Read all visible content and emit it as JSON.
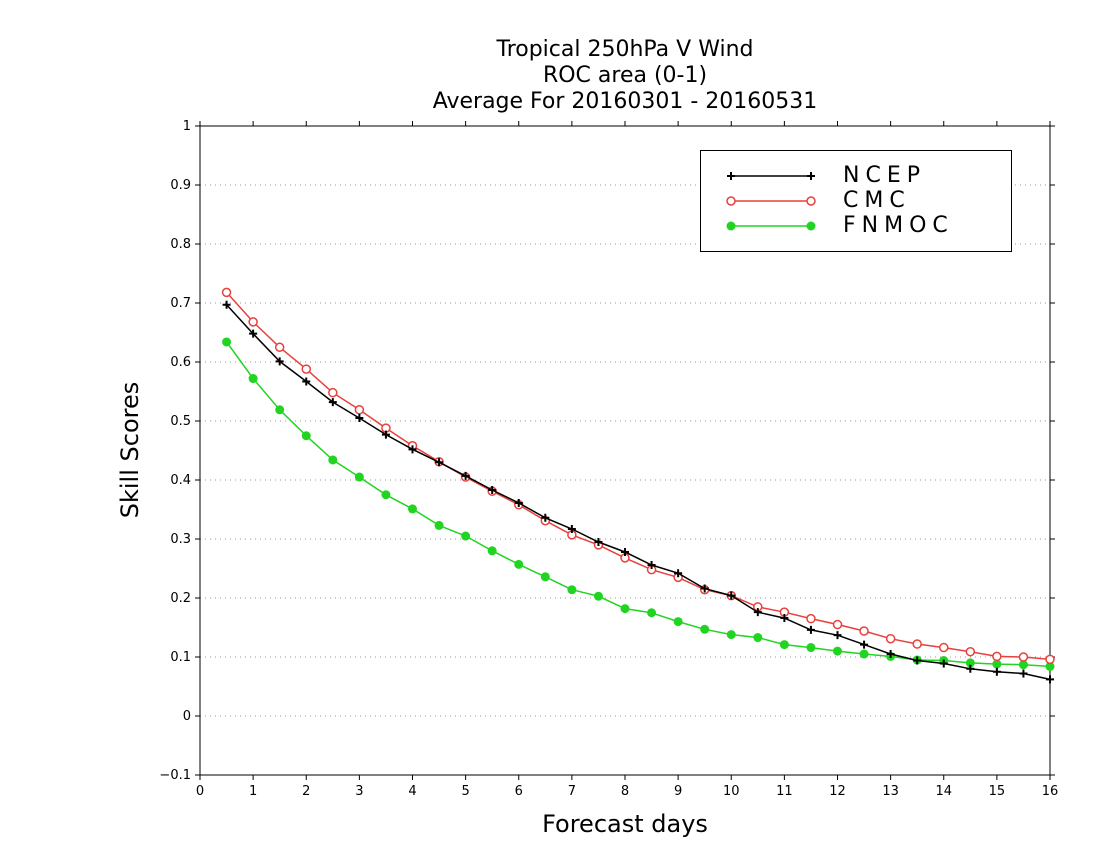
{
  "chart_data": {
    "type": "line",
    "title": [
      "Tropical 250hPa V Wind",
      "ROC area (0-1)",
      "Average For 20160301 - 20160531"
    ],
    "xlabel": "Forecast days",
    "ylabel": "Skill Scores",
    "xlim": [
      0,
      16
    ],
    "ylim": [
      -0.1,
      1
    ],
    "xticks": [
      0,
      1,
      2,
      3,
      4,
      5,
      6,
      7,
      8,
      9,
      10,
      11,
      12,
      13,
      14,
      15,
      16
    ],
    "yticks": [
      -0.1,
      0,
      0.1,
      0.2,
      0.3,
      0.4,
      0.5,
      0.6,
      0.7,
      0.8,
      0.9,
      1
    ],
    "ytick_labels": [
      "−0.1",
      "0",
      "0.1",
      "0.2",
      "0.3",
      "0.4",
      "0.5",
      "0.6",
      "0.7",
      "0.8",
      "0.9",
      "1"
    ],
    "grid": "horizontal dotted",
    "legend_position": "top-right",
    "x": [
      0.5,
      1,
      1.5,
      2,
      2.5,
      3,
      3.5,
      4,
      4.5,
      5,
      5.5,
      6,
      6.5,
      7,
      7.5,
      8,
      8.5,
      9,
      9.5,
      10,
      10.5,
      11,
      11.5,
      12,
      12.5,
      13,
      13.5,
      14,
      14.5,
      15,
      15.5,
      16
    ],
    "series": [
      {
        "name": "NCEP",
        "color": "#000000",
        "marker": "plus",
        "values": [
          0.697,
          0.648,
          0.601,
          0.567,
          0.532,
          0.505,
          0.477,
          0.452,
          0.43,
          0.407,
          0.383,
          0.361,
          0.336,
          0.317,
          0.295,
          0.278,
          0.256,
          0.242,
          0.216,
          0.204,
          0.176,
          0.166,
          0.146,
          0.137,
          0.121,
          0.105,
          0.094,
          0.089,
          0.08,
          0.075,
          0.072,
          0.062
        ]
      },
      {
        "name": "CMC",
        "color": "#e8403c",
        "marker": "open-circle",
        "values": [
          0.718,
          0.668,
          0.625,
          0.588,
          0.548,
          0.519,
          0.488,
          0.458,
          0.431,
          0.405,
          0.381,
          0.358,
          0.331,
          0.307,
          0.29,
          0.268,
          0.248,
          0.235,
          0.214,
          0.204,
          0.185,
          0.176,
          0.165,
          0.155,
          0.144,
          0.131,
          0.122,
          0.116,
          0.109,
          0.101,
          0.1,
          0.096
        ]
      },
      {
        "name": "FNMOC",
        "color": "#22d422",
        "marker": "filled-circle",
        "values": [
          0.634,
          0.572,
          0.519,
          0.475,
          0.434,
          0.405,
          0.375,
          0.351,
          0.323,
          0.305,
          0.28,
          0.257,
          0.236,
          0.214,
          0.203,
          0.182,
          0.175,
          0.16,
          0.147,
          0.138,
          0.133,
          0.121,
          0.116,
          0.11,
          0.105,
          0.101,
          0.095,
          0.094,
          0.09,
          0.088,
          0.087,
          0.084
        ]
      }
    ]
  }
}
